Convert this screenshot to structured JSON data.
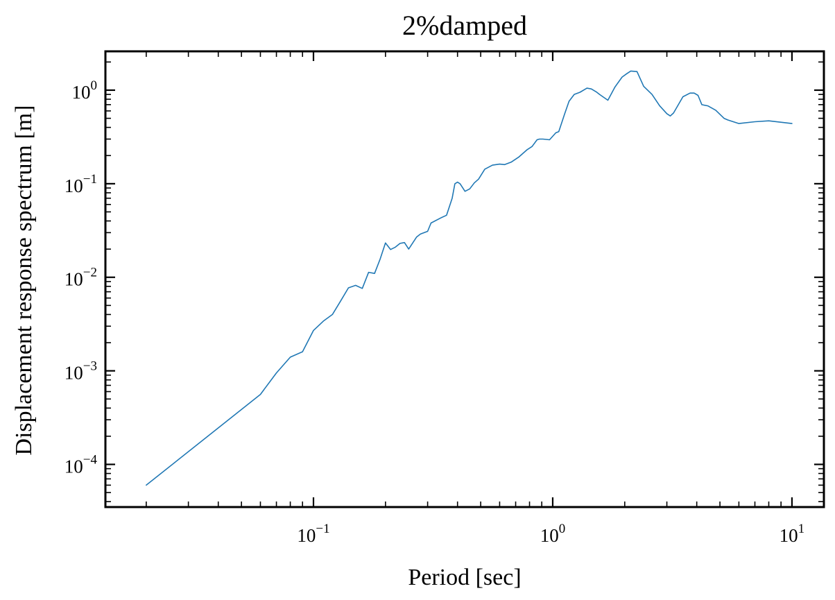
{
  "chart_data": {
    "type": "line",
    "title": "2%damped",
    "xlabel": "Period [sec]",
    "ylabel": "Displacement response spectrum [m]",
    "xscale": "log",
    "yscale": "log",
    "xlim": [
      0.0135,
      13.6
    ],
    "ylim": [
      3.5e-05,
      2.6
    ],
    "xticks": [
      {
        "base": "10",
        "exp": "−1",
        "value": 0.1
      },
      {
        "base": "10",
        "exp": "0",
        "value": 1
      },
      {
        "base": "10",
        "exp": "1",
        "value": 10
      }
    ],
    "yticks": [
      {
        "base": "10",
        "exp": "−4",
        "value": 0.0001
      },
      {
        "base": "10",
        "exp": "−3",
        "value": 0.001
      },
      {
        "base": "10",
        "exp": "−2",
        "value": 0.01
      },
      {
        "base": "10",
        "exp": "−1",
        "value": 0.1
      },
      {
        "base": "10",
        "exp": "0",
        "value": 1
      }
    ],
    "grid": false,
    "legend": "none",
    "series": [
      {
        "color": "#1f77b4",
        "x": [
          0.02,
          0.06,
          0.07,
          0.08,
          0.09,
          0.1,
          0.11,
          0.12,
          0.13,
          0.14,
          0.15,
          0.16,
          0.17,
          0.18,
          0.19,
          0.2,
          0.21,
          0.22,
          0.23,
          0.24,
          0.25,
          0.27,
          0.28,
          0.3,
          0.31,
          0.34,
          0.36,
          0.38,
          0.39,
          0.4,
          0.41,
          0.43,
          0.45,
          0.47,
          0.49,
          0.52,
          0.56,
          0.6,
          0.63,
          0.67,
          0.72,
          0.78,
          0.82,
          0.86,
          0.88,
          0.91,
          0.97,
          1.03,
          1.06,
          1.12,
          1.17,
          1.23,
          1.3,
          1.39,
          1.45,
          1.52,
          1.57,
          1.7,
          1.82,
          1.95,
          2.04,
          2.12,
          2.25,
          2.4,
          2.6,
          2.8,
          3.0,
          3.1,
          3.2,
          3.5,
          3.75,
          3.9,
          4.05,
          4.2,
          4.45,
          4.8,
          5.2,
          5.4,
          6.0,
          7.0,
          8.0,
          10.0
        ],
        "y": [
          6e-05,
          0.00056,
          0.00095,
          0.0014,
          0.0016,
          0.0027,
          0.0034,
          0.004,
          0.0056,
          0.0077,
          0.0082,
          0.0076,
          0.0113,
          0.011,
          0.0157,
          0.0233,
          0.0198,
          0.021,
          0.023,
          0.0235,
          0.02,
          0.027,
          0.029,
          0.031,
          0.038,
          0.043,
          0.046,
          0.07,
          0.1,
          0.104,
          0.1,
          0.083,
          0.088,
          0.102,
          0.112,
          0.143,
          0.158,
          0.162,
          0.16,
          0.17,
          0.192,
          0.23,
          0.25,
          0.295,
          0.3,
          0.3,
          0.295,
          0.35,
          0.36,
          0.55,
          0.76,
          0.9,
          0.95,
          1.05,
          1.03,
          0.96,
          0.9,
          0.78,
          1.08,
          1.38,
          1.5,
          1.6,
          1.58,
          1.1,
          0.9,
          0.68,
          0.56,
          0.53,
          0.57,
          0.85,
          0.93,
          0.93,
          0.88,
          0.7,
          0.68,
          0.61,
          0.5,
          0.48,
          0.44,
          0.46,
          0.47,
          0.44
        ]
      }
    ]
  }
}
